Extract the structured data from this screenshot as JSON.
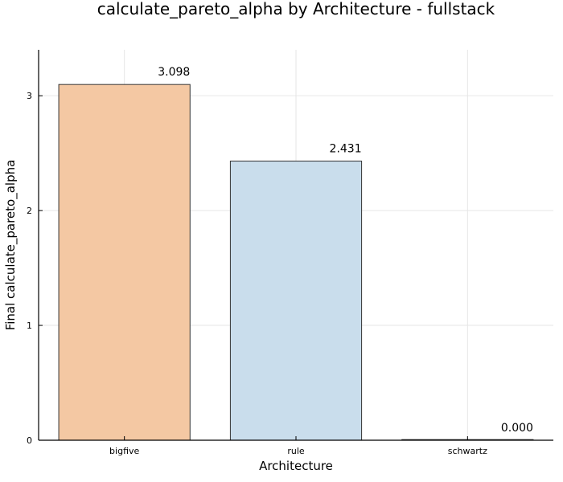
{
  "chart_data": {
    "type": "bar",
    "title": "calculate_pareto_alpha by Architecture - fullstack",
    "xlabel": "Architecture",
    "ylabel": "Final calculate_pareto_alpha",
    "categories": [
      "bigfive",
      "rule",
      "schwartz"
    ],
    "values": [
      3.098,
      2.431,
      0.0
    ],
    "value_labels": [
      "3.098",
      "2.431",
      "0.000"
    ],
    "colors": [
      "#f4c8a3",
      "#c9ddec",
      "#c9ddec"
    ],
    "ylim": [
      0,
      3.4
    ],
    "yticks": [
      0,
      1,
      2,
      3
    ],
    "ytick_labels": [
      "0",
      "1",
      "2",
      "3"
    ],
    "grid": true,
    "legend": "none"
  }
}
